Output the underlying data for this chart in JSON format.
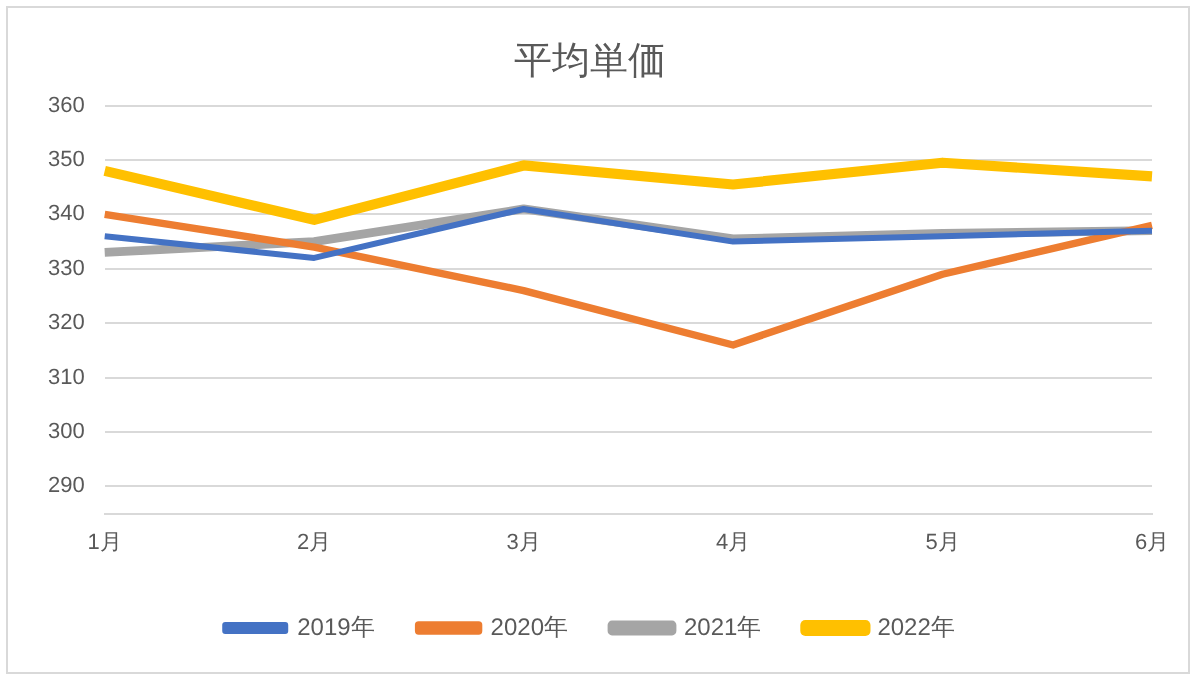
{
  "chart_data": {
    "type": "line",
    "title": "平均単価",
    "categories": [
      "1月",
      "2月",
      "3月",
      "4月",
      "5月",
      "6月"
    ],
    "series": [
      {
        "name": "2019年",
        "color": "#4472c4",
        "values": [
          336,
          332,
          341,
          335,
          336,
          337
        ]
      },
      {
        "name": "2020年",
        "color": "#ed7d31",
        "values": [
          340,
          334,
          326,
          316,
          329,
          338
        ]
      },
      {
        "name": "2021年",
        "color": "#a5a5a5",
        "values": [
          333,
          335,
          341,
          335.5,
          336.5,
          337
        ]
      },
      {
        "name": "2022年",
        "color": "#ffc000",
        "values": [
          348,
          339,
          349,
          345.5,
          349.5,
          347
        ]
      }
    ],
    "ylim": [
      285,
      360
    ],
    "yticks": [
      290,
      300,
      310,
      320,
      330,
      340,
      350,
      360
    ],
    "grid": "y",
    "legend": "bottom",
    "marker": "none"
  }
}
